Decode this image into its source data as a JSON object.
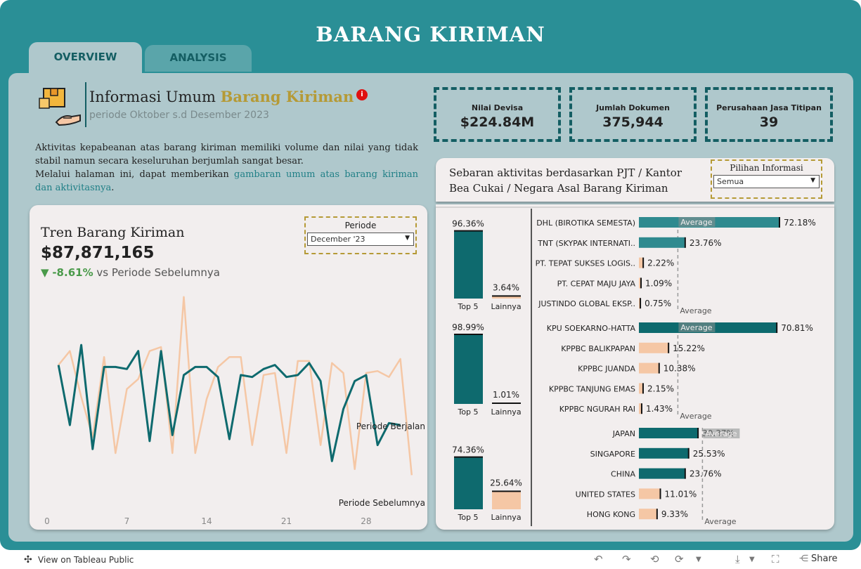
{
  "title": "BARANG  KIRIMAN",
  "tabs": [
    {
      "label": "OVERVIEW",
      "active": true
    },
    {
      "label": "ANALYSIS",
      "active": false
    }
  ],
  "info": {
    "title_main": "Informasi Umum ",
    "title_highlight": "Barang Kiriman",
    "period": "periode Oktober s.d Desember 2023",
    "badge": "i"
  },
  "description": {
    "line1": "Aktivitas kepabeanan atas barang kiriman memiliki volume dan nilai yang tidak stabil namun secara keseluruhan berjumlah sangat besar.",
    "line2_prefix": "Melalui halaman ini, dapat memberikan ",
    "line2_link": "gambaran umum atas barang kiriman dan aktivitasnya",
    "line2_suffix": "."
  },
  "kpis": [
    {
      "label": "Nilai Devisa",
      "value": "$224.84M"
    },
    {
      "label": "Jumlah Dokumen",
      "value": "375,944"
    },
    {
      "label": "Perusahaan Jasa Titipan",
      "value": "39"
    }
  ],
  "trend": {
    "title": "Tren Barang Kiriman",
    "value": "$87,871,165",
    "change_arrow": "▼",
    "change_pct": "-8.61%",
    "change_text": " vs Periode Sebelumnya",
    "filter_label": "Periode",
    "filter_value": "December '23",
    "label_current": "Periode Berjalan",
    "label_previous": "Periode Sebelumnya"
  },
  "distribution": {
    "title": "Sebaran aktivitas berdasarkan PJT / Kantor Bea Cukai / Negara Asal Barang Kiriman",
    "filter_label": "Pilihan Informasi",
    "filter_value": "Semua",
    "average_label": "Average",
    "top5_label": "Top 5",
    "lainnya_label": "Lainnya"
  },
  "colors": {
    "teal_dark": "#0e6a6e",
    "teal_mid": "#2f8a8f",
    "peach": "#f5c7a5",
    "frame": "#2a8f96",
    "panel": "#afc8cc",
    "gold": "#b59a36"
  },
  "chart_data": [
    {
      "type": "line",
      "title": "Tren Barang Kiriman",
      "x_ticks": [
        0,
        7,
        14,
        21,
        28
      ],
      "xlim": [
        0,
        33
      ],
      "ylim": [
        0,
        100
      ],
      "series": [
        {
          "name": "Periode Berjalan",
          "color": "#0e6a6e",
          "x": [
            1,
            2,
            3,
            4,
            5,
            6,
            7,
            8,
            9,
            10,
            11,
            12,
            13,
            14,
            15,
            16,
            17,
            18,
            19,
            20,
            21,
            22,
            23,
            24,
            25,
            26,
            27,
            28,
            29,
            30,
            31
          ],
          "values": [
            64,
            34,
            74,
            22,
            63,
            63,
            62,
            71,
            26,
            71,
            29,
            59,
            63,
            63,
            58,
            27,
            59,
            58,
            62,
            64,
            58,
            59,
            65,
            56,
            16,
            42,
            56,
            59,
            24,
            35,
            34
          ]
        },
        {
          "name": "Periode Sebelumnya",
          "color": "#f5c7a5",
          "x": [
            1,
            2,
            3,
            4,
            5,
            6,
            7,
            8,
            9,
            10,
            11,
            12,
            13,
            14,
            15,
            16,
            17,
            18,
            19,
            20,
            21,
            22,
            23,
            24,
            25,
            26,
            27,
            28,
            29,
            30,
            31,
            32
          ],
          "values": [
            64,
            71,
            48,
            28,
            68,
            20,
            52,
            57,
            71,
            73,
            20,
            98,
            20,
            47,
            63,
            68,
            68,
            24,
            59,
            60,
            20,
            66,
            66,
            24,
            65,
            60,
            12,
            60,
            61,
            58,
            67,
            9
          ]
        }
      ]
    },
    {
      "type": "bar",
      "title": "Sebaran PJT",
      "categories": [
        "DHL (BIROTIKA SEMESTA)",
        "TNT (SKYPAK INTERNATI..",
        "PT. TEPAT SUKSES LOGIS..",
        "PT. CEPAT MAJU JAYA",
        "JUSTINDO GLOBAL EKSP.."
      ],
      "values": [
        72.18,
        23.76,
        2.22,
        1.09,
        0.75
      ],
      "labels": [
        "72.18%",
        "23.76%",
        "2.22%",
        "1.09%",
        "0.75%"
      ],
      "top5": 96.36,
      "top5_label": "96.36%",
      "lainnya": 3.64,
      "lainnya_label": "3.64%",
      "average": 20
    },
    {
      "type": "bar",
      "title": "Sebaran Kantor",
      "categories": [
        "KPU SOEKARNO-HATTA",
        "KPPBC BALIKPAPAN",
        "KPPBC JUANDA",
        "KPPBC TANJUNG EMAS",
        "KPPBC NGURAH RAI"
      ],
      "values": [
        70.81,
        15.22,
        10.38,
        2.15,
        1.43
      ],
      "labels": [
        "70.81%",
        "15.22%",
        "10.38%",
        "2.15%",
        "1.43%"
      ],
      "top5": 98.99,
      "top5_label": "98.99%",
      "lainnya": 1.01,
      "lainnya_label": "1.01%",
      "average": 20
    },
    {
      "type": "bar",
      "title": "Sebaran Negara",
      "categories": [
        "JAPAN",
        "SINGAPORE",
        "CHINA",
        "UNITED STATES",
        "HONG KONG"
      ],
      "values": [
        30.37,
        25.53,
        23.76,
        11.01,
        9.33
      ],
      "labels": [
        "30.37%",
        "25.53%",
        "23.76%",
        "11.01%",
        "9.33%"
      ],
      "top5": 74.36,
      "top5_label": "74.36%",
      "lainnya": 25.64,
      "lainnya_label": "25.64%",
      "average": 20
    }
  ],
  "bottom_bar": {
    "tableau_link": "View on Tableau Public",
    "share": "Share"
  }
}
